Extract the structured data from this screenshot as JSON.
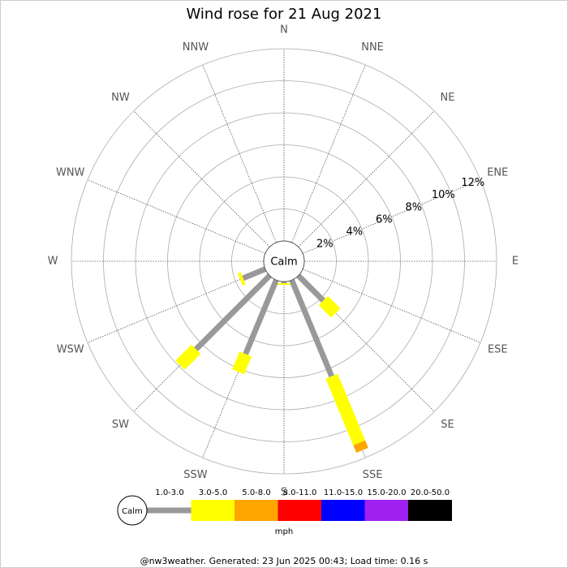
{
  "chart_data": {
    "type": "windrose",
    "title": "Wind rose for 21 Aug 2021",
    "categories": [
      "N",
      "NNE",
      "NE",
      "ENE",
      "E",
      "ESE",
      "SE",
      "SSE",
      "S",
      "SSW",
      "SW",
      "WSW",
      "W",
      "WNW",
      "NW",
      "NNW"
    ],
    "calm_label": "Calm",
    "rlim": [
      0,
      12
    ],
    "rticks": [
      {
        "value": 2,
        "label": "2%"
      },
      {
        "value": 4,
        "label": "4%"
      },
      {
        "value": 6,
        "label": "6%"
      },
      {
        "value": 8,
        "label": "8%"
      },
      {
        "value": 10,
        "label": "10%"
      },
      {
        "value": 12,
        "label": "12%"
      }
    ],
    "series": [
      {
        "name": "1.0-3.0",
        "color": "#999999",
        "values": [
          0,
          0,
          0,
          0,
          0,
          0,
          2.2,
          6.5,
          0.1,
          5.0,
          6.5,
          1.5,
          0,
          0,
          0,
          0
        ]
      },
      {
        "name": "3.0-5.0",
        "color": "#ffff00",
        "values": [
          0,
          0,
          0,
          0,
          0,
          0,
          1.1,
          4.5,
          0.1,
          1.2,
          1.4,
          0.2,
          0,
          0,
          0,
          0
        ]
      },
      {
        "name": "5.0-8.0",
        "color": "#ffa500",
        "values": [
          0,
          0,
          0,
          0,
          0,
          0,
          0,
          0.5,
          0,
          0,
          0,
          0,
          0,
          0,
          0,
          0
        ]
      },
      {
        "name": "8.0-11.0",
        "color": "#ff0000",
        "values": [
          0,
          0,
          0,
          0,
          0,
          0,
          0,
          0,
          0,
          0,
          0,
          0,
          0,
          0,
          0,
          0
        ]
      },
      {
        "name": "11.0-15.0",
        "color": "#0000ff",
        "values": [
          0,
          0,
          0,
          0,
          0,
          0,
          0,
          0,
          0,
          0,
          0,
          0,
          0,
          0,
          0,
          0
        ]
      },
      {
        "name": "15.0-20.0",
        "color": "#a020f0",
        "values": [
          0,
          0,
          0,
          0,
          0,
          0,
          0,
          0,
          0,
          0,
          0,
          0,
          0,
          0,
          0,
          0
        ]
      },
      {
        "name": "20.0-50.0",
        "color": "#000000",
        "values": [
          0,
          0,
          0,
          0,
          0,
          0,
          0,
          0,
          0,
          0,
          0,
          0,
          0,
          0,
          0,
          0
        ]
      }
    ],
    "unit": "mph",
    "footer": "@nw3weather. Generated: 23 Jun 2025 00:43; Load time: 0.16 s"
  }
}
